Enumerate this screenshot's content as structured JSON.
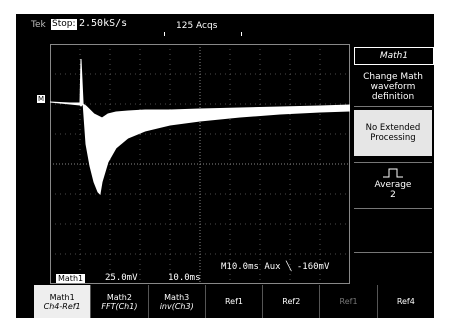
{
  "top": {
    "brand": "Tek",
    "status": "Stop:",
    "rate": "2.50kS/s",
    "acqs": "125 Acqs"
  },
  "marker": "M",
  "readout": {
    "channel": "Math1",
    "v1": "25.0mV",
    "v2": "10.0ms",
    "trigger": "M10.0ms  Aux ╲  -160mV"
  },
  "side_menu": {
    "title": "Math1",
    "desc": [
      "Change Math",
      "waveform",
      "definition"
    ],
    "no_extended": [
      "No Extended",
      "Processing"
    ],
    "average_label": "Average",
    "average_value": "2",
    "icons": {
      "average": "step-pulse-icon"
    }
  },
  "bottom_menu": [
    {
      "label": "Math1",
      "sub": "Ch4-Ref1",
      "selected": true
    },
    {
      "label": "Math2",
      "sub": "FFT(Ch1)"
    },
    {
      "label": "Math3",
      "sub": "inv(Ch3)"
    },
    {
      "label": "Ref1",
      "sub": ""
    },
    {
      "label": "Ref2",
      "sub": ""
    },
    {
      "label": "Ref1",
      "sub": "",
      "dim": true
    },
    {
      "label": "Ref4",
      "sub": ""
    }
  ],
  "colors": {
    "screen": "#000000",
    "trace": "#ffffff",
    "highlight": "#e6e6e6"
  }
}
